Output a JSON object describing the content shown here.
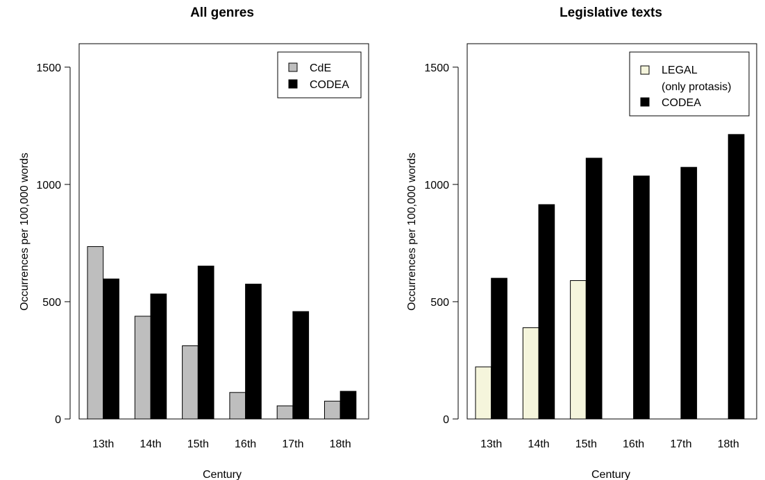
{
  "chart_data": [
    {
      "type": "bar",
      "title": "All genres",
      "xlabel": "Century",
      "ylabel": "Occurrences per 100,000 words",
      "ylim": [
        0,
        1600
      ],
      "yticks": [
        0,
        500,
        1000,
        1500
      ],
      "categories": [
        "13th",
        "14th",
        "15th",
        "16th",
        "17th",
        "18th"
      ],
      "series": [
        {
          "name": "CdE",
          "values": [
            735,
            438,
            312,
            113,
            56,
            76
          ],
          "color": "#bebebe"
        },
        {
          "name": "CODEA",
          "values": [
            597,
            533,
            652,
            575,
            458,
            118
          ],
          "color": "#000000"
        }
      ],
      "legend_position": "top-right",
      "grid": false
    },
    {
      "type": "bar",
      "title": "Legislative texts",
      "xlabel": "Century",
      "ylabel": "Occurrences per 100,000 words",
      "ylim": [
        0,
        1600
      ],
      "yticks": [
        0,
        500,
        1000,
        1500
      ],
      "categories": [
        "13th",
        "14th",
        "15th",
        "16th",
        "17th",
        "18th"
      ],
      "series": [
        {
          "name": "LEGAL (only protasis)",
          "legend_lines": [
            "LEGAL",
            "(only protasis)"
          ],
          "values": [
            222,
            389,
            590,
            null,
            null,
            null
          ],
          "color": "#f5f5dc"
        },
        {
          "name": "CODEA",
          "values": [
            600,
            914,
            1112,
            1036,
            1073,
            1213
          ],
          "color": "#000000"
        }
      ],
      "legend_position": "top-right",
      "grid": false
    }
  ]
}
